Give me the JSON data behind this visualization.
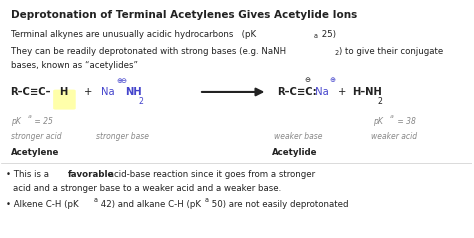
{
  "title": "Deprotonation of Terminal Acetylenes Gives Acetylide Ions",
  "bg_color": "#ffffff",
  "figsize": [
    4.74,
    2.38
  ],
  "dpi": 100,
  "line1": "Terminal alkynes are unusually acidic hydrocarbons   (pK",
  "line1_sub": "a",
  "line1_end": " 25)",
  "line2a": "They can be readily deprotonated with strong bases (e.g. NaNH",
  "line2_sub": "2",
  "line2b": ") to give their conjugate",
  "line3": "bases, known as “acetylides”",
  "bullet1a": "• This is a ",
  "bullet1b": "favorable",
  "bullet1c": " acid-base reaction since it goes from a stronger",
  "bullet1d": "acid and a stronger base to a weaker acid and a weaker base.",
  "bullet2a": "• Alkene C-H (pK",
  "bullet2b": "a",
  "bullet2c": " 42) and alkane C-H (pK",
  "bullet2d": "a",
  "bullet2e": " 50) are not easily deprotonated",
  "highlight_color": "#ffffaa",
  "blue_color": "#4444cc",
  "gray_color": "#888888",
  "text_color": "#222222"
}
